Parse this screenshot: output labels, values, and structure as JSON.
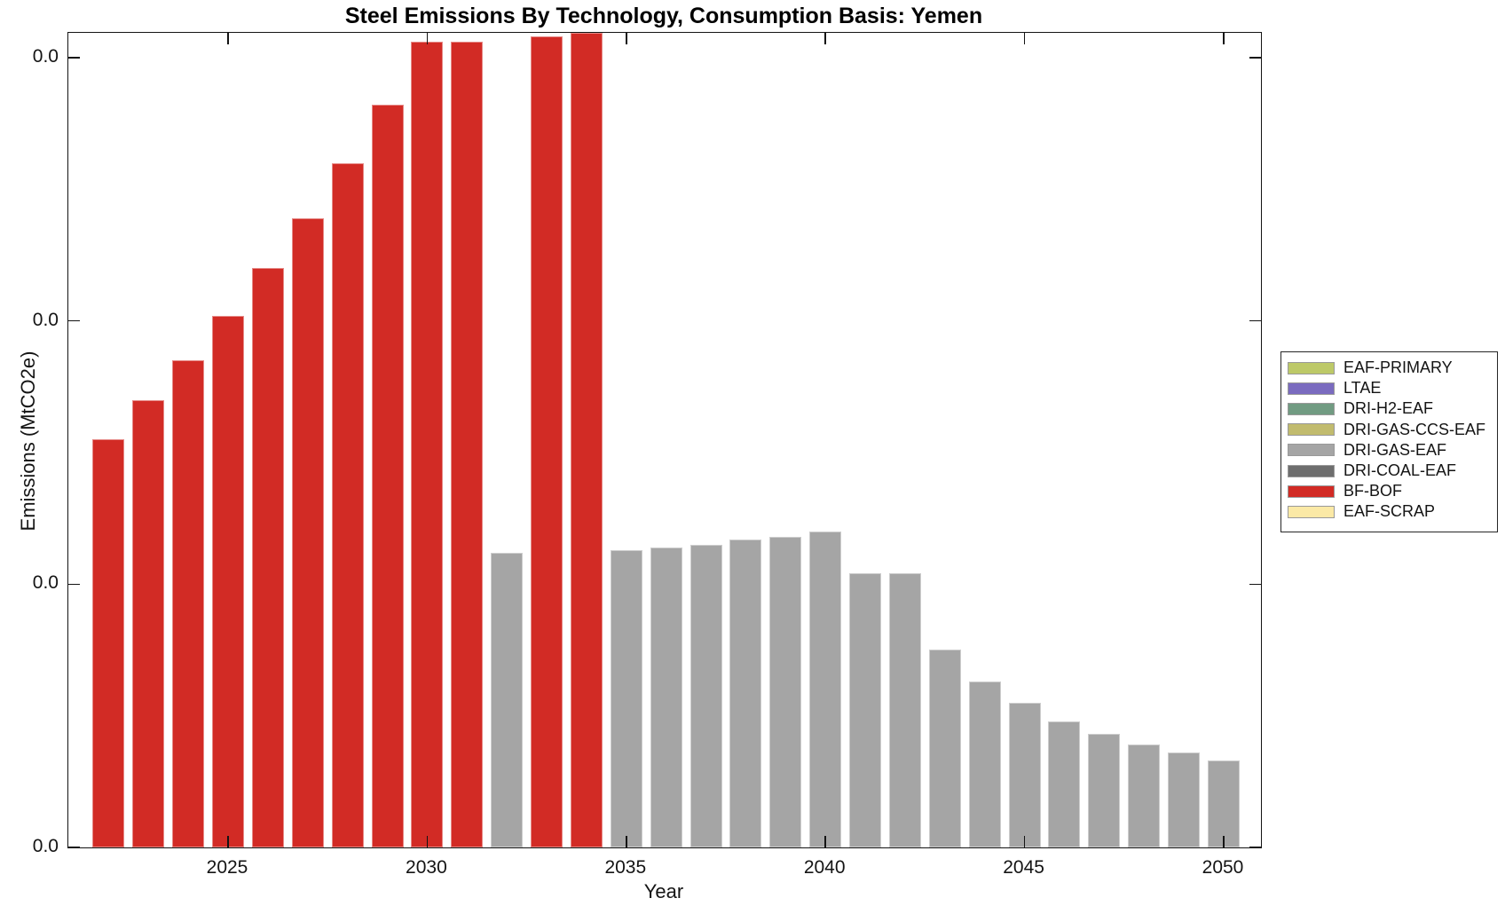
{
  "title": "Steel Emissions By Technology, Consumption Basis: Yemen",
  "axes": {
    "xlabel": "Year",
    "ylabel": "Emissions (MtCO2e)",
    "x_tick_labels": [
      "2025",
      "2030",
      "2035",
      "2040",
      "2045",
      "2050"
    ],
    "y_tick_labels": [
      "0.0",
      "0.0",
      "0.0",
      "0.0"
    ]
  },
  "legend": {
    "items": [
      {
        "label": "EAF-PRIMARY",
        "color": "#bdc968"
      },
      {
        "label": "LTAE",
        "color": "#7a6bbf"
      },
      {
        "label": "DRI-H2-EAF",
        "color": "#719b82"
      },
      {
        "label": "DRI-GAS-CCS-EAF",
        "color": "#c1bb6e"
      },
      {
        "label": "DRI-GAS-EAF",
        "color": "#a5a5a5"
      },
      {
        "label": "DRI-COAL-EAF",
        "color": "#6e6e6e"
      },
      {
        "label": "BF-BOF",
        "color": "#d22b25"
      },
      {
        "label": "EAF-SCRAP",
        "color": "#fbe9a6"
      }
    ]
  },
  "chart_data": {
    "type": "bar",
    "title": "Steel Emissions By Technology, Consumption Basis: Yemen",
    "xlabel": "Year",
    "ylabel": "Emissions (MtCO2e)",
    "x_axis_ticks": [
      2025,
      2030,
      2035,
      2040,
      2045,
      2050
    ],
    "y_axis_tick_labels_shown": [
      "0.0",
      "0.0",
      "0.0",
      "0.0"
    ],
    "value_units_note": "All y tick labels render as 0.0; bar values below are heights measured in y-axis tick intervals (1.0 = spacing between adjacent ticks)",
    "grid": false,
    "legend_position": "outside-right",
    "bars": [
      {
        "year": 2022,
        "technology": "BF-BOF",
        "value_ticks": 1.55
      },
      {
        "year": 2023,
        "technology": "BF-BOF",
        "value_ticks": 1.7
      },
      {
        "year": 2024,
        "technology": "BF-BOF",
        "value_ticks": 1.85
      },
      {
        "year": 2025,
        "technology": "BF-BOF",
        "value_ticks": 2.02
      },
      {
        "year": 2026,
        "technology": "BF-BOF",
        "value_ticks": 2.2
      },
      {
        "year": 2027,
        "technology": "BF-BOF",
        "value_ticks": 2.39
      },
      {
        "year": 2028,
        "technology": "BF-BOF",
        "value_ticks": 2.6
      },
      {
        "year": 2029,
        "technology": "BF-BOF",
        "value_ticks": 2.82
      },
      {
        "year": 2030,
        "technology": "BF-BOF",
        "value_ticks": 3.06
      },
      {
        "year": 2031,
        "technology": "BF-BOF",
        "value_ticks": 3.06
      },
      {
        "year": 2032,
        "technology": "DRI-GAS-EAF",
        "value_ticks": 1.12
      },
      {
        "year": 2033,
        "technology": "BF-BOF",
        "value_ticks": 3.08
      },
      {
        "year": 2034,
        "technology": "BF-BOF",
        "value_ticks": 3.1,
        "clipped_at_top": true
      },
      {
        "year": 2035,
        "technology": "DRI-GAS-EAF",
        "value_ticks": 1.13
      },
      {
        "year": 2036,
        "technology": "DRI-GAS-EAF",
        "value_ticks": 1.14
      },
      {
        "year": 2037,
        "technology": "DRI-GAS-EAF",
        "value_ticks": 1.15
      },
      {
        "year": 2038,
        "technology": "DRI-GAS-EAF",
        "value_ticks": 1.17
      },
      {
        "year": 2039,
        "technology": "DRI-GAS-EAF",
        "value_ticks": 1.18
      },
      {
        "year": 2040,
        "technology": "DRI-GAS-EAF",
        "value_ticks": 1.2
      },
      {
        "year": 2041,
        "technology": "DRI-GAS-EAF",
        "value_ticks": 1.04
      },
      {
        "year": 2042,
        "technology": "DRI-GAS-EAF",
        "value_ticks": 1.04
      },
      {
        "year": 2043,
        "technology": "DRI-GAS-EAF",
        "value_ticks": 0.75
      },
      {
        "year": 2044,
        "technology": "DRI-GAS-EAF",
        "value_ticks": 0.63
      },
      {
        "year": 2045,
        "technology": "DRI-GAS-EAF",
        "value_ticks": 0.55
      },
      {
        "year": 2046,
        "technology": "DRI-GAS-EAF",
        "value_ticks": 0.48
      },
      {
        "year": 2047,
        "technology": "DRI-GAS-EAF",
        "value_ticks": 0.43
      },
      {
        "year": 2048,
        "technology": "DRI-GAS-EAF",
        "value_ticks": 0.39
      },
      {
        "year": 2049,
        "technology": "DRI-GAS-EAF",
        "value_ticks": 0.36
      },
      {
        "year": 2050,
        "technology": "DRI-GAS-EAF",
        "value_ticks": 0.33
      }
    ]
  },
  "colors": {
    "bf_bof": "#d22b25",
    "dri_gas_eaf": "#a5a5a5",
    "axis": "#141414",
    "background": "#ffffff"
  }
}
